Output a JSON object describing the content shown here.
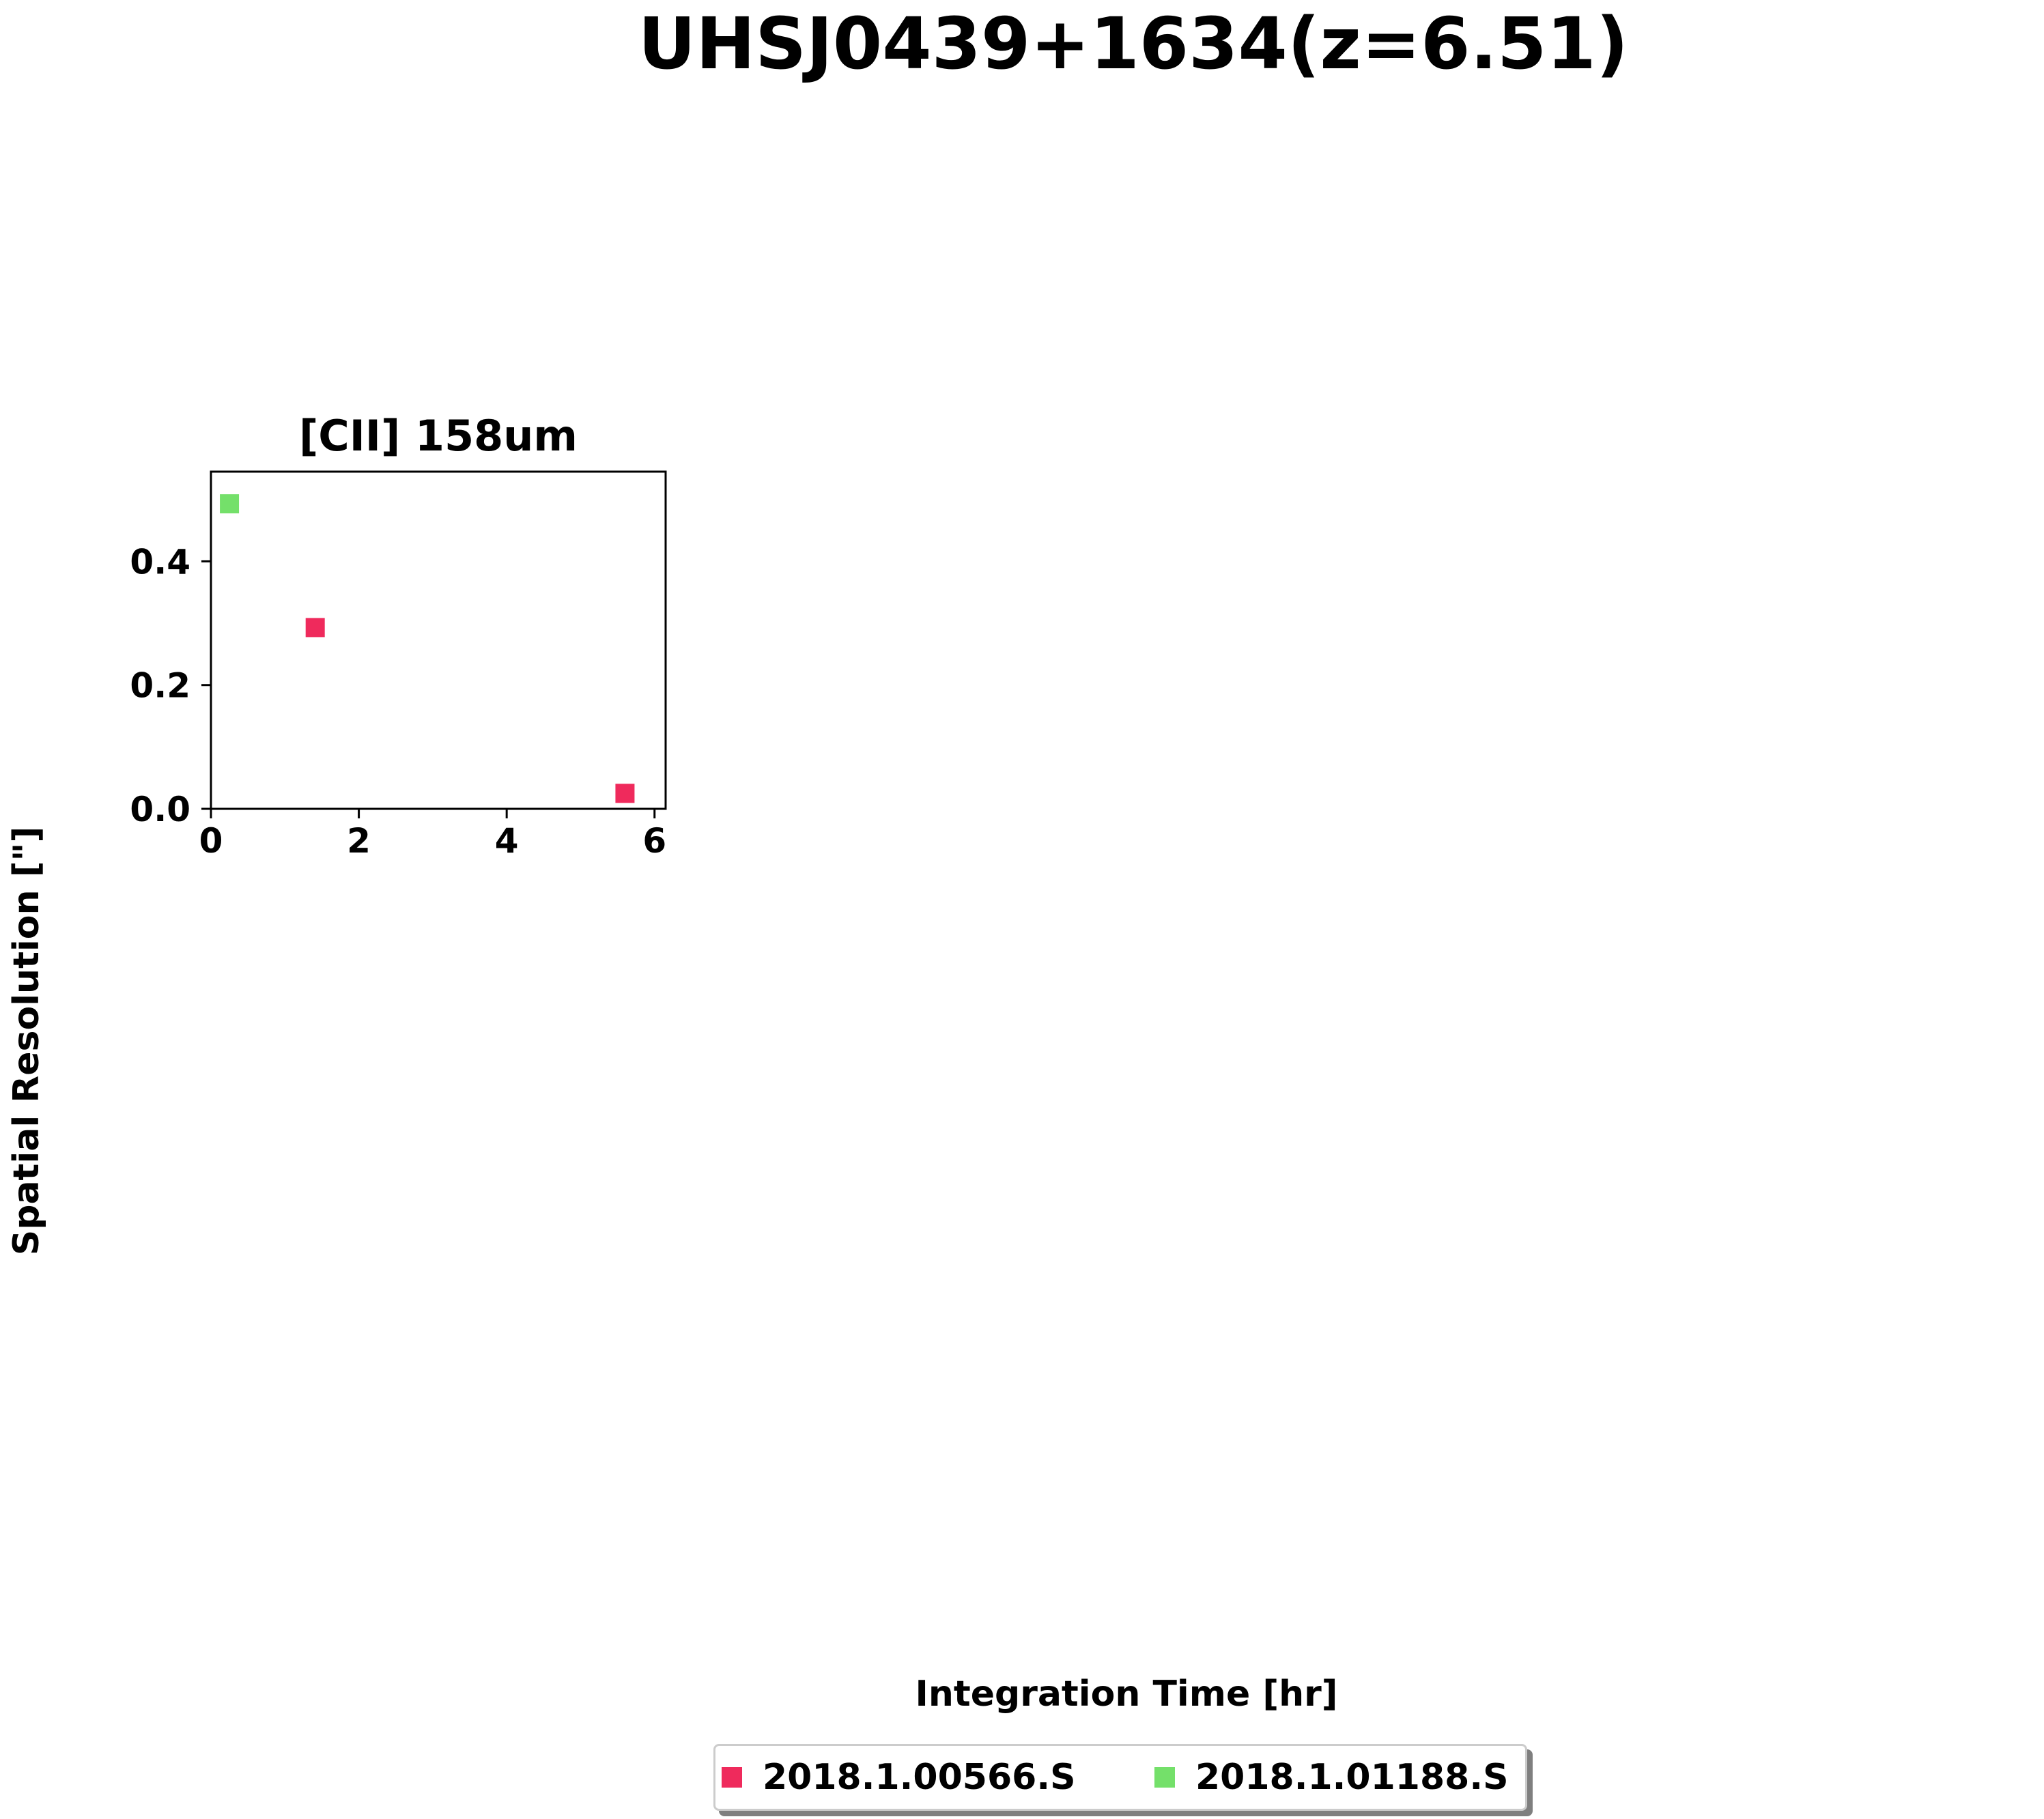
{
  "figure": {
    "suptitle": "UHSJ0439+1634(z=6.51)",
    "xlabel": "Integration Time [hr]",
    "ylabel": "Spatial Resolution [\"]"
  },
  "legend": {
    "placement": "bottom-center",
    "entries": [
      {
        "label": "2018.1.00566.S",
        "color": "#ef2a5c"
      },
      {
        "label": "2018.1.01188.S",
        "color": "#74e06a"
      }
    ]
  },
  "chart_data": {
    "type": "scatter",
    "title": "[CII] 158um",
    "xlabel": "Integration Time [hr]",
    "ylabel": "Spatial Resolution [\"]",
    "xlim": [
      0,
      6.15
    ],
    "ylim": [
      0,
      0.545
    ],
    "xticks": [
      0,
      2,
      4,
      6
    ],
    "xtick_labels": [
      "0",
      "2",
      "4",
      "6"
    ],
    "yticks": [
      0.0,
      0.2,
      0.4
    ],
    "ytick_labels": [
      "0.0",
      "0.2",
      "0.4"
    ],
    "grid": false,
    "series": [
      {
        "name": "2018.1.00566.S",
        "color": "#ef2a5c",
        "marker": "square",
        "x": [
          1.41,
          5.6
        ],
        "y": [
          0.293,
          0.025
        ]
      },
      {
        "name": "2018.1.01188.S",
        "color": "#74e06a",
        "marker": "square",
        "x": [
          0.25
        ],
        "y": [
          0.493
        ]
      }
    ]
  }
}
